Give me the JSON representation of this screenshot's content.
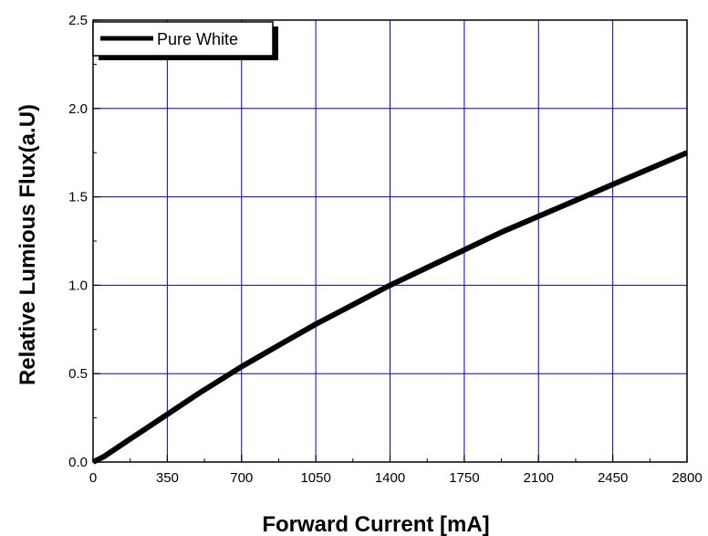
{
  "chart_data": {
    "type": "line",
    "xlabel": "Forward Current [mA]",
    "ylabel": "Relative Lumious Flux(a.U)",
    "xlim": [
      0,
      2800
    ],
    "ylim": [
      0,
      2.5
    ],
    "x_ticks": [
      "0",
      "350",
      "700",
      "1050",
      "1400",
      "1750",
      "2100",
      "2450",
      "2800"
    ],
    "y_ticks": [
      "0.0",
      "0.5",
      "1.0",
      "1.5",
      "2.0",
      "2.5"
    ],
    "grid": true,
    "legend_position": "top-left",
    "series": [
      {
        "name": "Pure White",
        "color": "#000000",
        "x": [
          0,
          50,
          100,
          175,
          250,
          350,
          500,
          700,
          875,
          1050,
          1225,
          1400,
          1575,
          1750,
          1925,
          2100,
          2275,
          2450,
          2625,
          2800
        ],
        "y": [
          0,
          0.03,
          0.07,
          0.13,
          0.19,
          0.27,
          0.39,
          0.54,
          0.66,
          0.78,
          0.89,
          1.0,
          1.1,
          1.2,
          1.3,
          1.39,
          1.48,
          1.57,
          1.66,
          1.75
        ]
      }
    ],
    "colors": {
      "grid": "#0000cc",
      "axis": "#000000"
    }
  }
}
